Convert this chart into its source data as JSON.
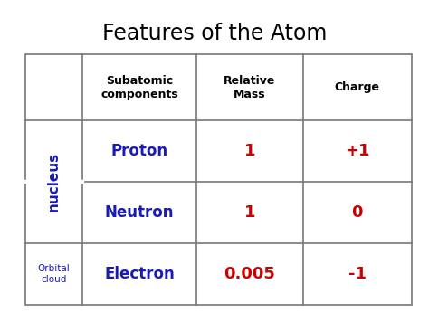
{
  "title": "Features of the Atom",
  "title_fontsize": 17,
  "title_color": "#000000",
  "background_color": "#ffffff",
  "border_color": "#777777",
  "header_texts": [
    "Subatomic\ncomponents",
    "Relative\nMass",
    "Charge"
  ],
  "header_fontsize": 9,
  "header_fontweight": "bold",
  "header_color": "#000000",
  "nucleus_color": "#1a1ab5",
  "nucleus_fontsize": 11,
  "orbital_color": "#1a1ab5",
  "orbital_fontsize": 7.5,
  "particle_color": "#1a1ab5",
  "particle_fontsize": 12,
  "mass_color": "#cc0000",
  "mass_fontsize": 13,
  "charge_color": "#cc0000",
  "charge_fontsize": 13,
  "particles": [
    "Proton",
    "Neutron",
    "Electron"
  ],
  "masses": [
    "1",
    "1",
    "0.005"
  ],
  "charges": [
    "+1",
    "0",
    "-1"
  ]
}
